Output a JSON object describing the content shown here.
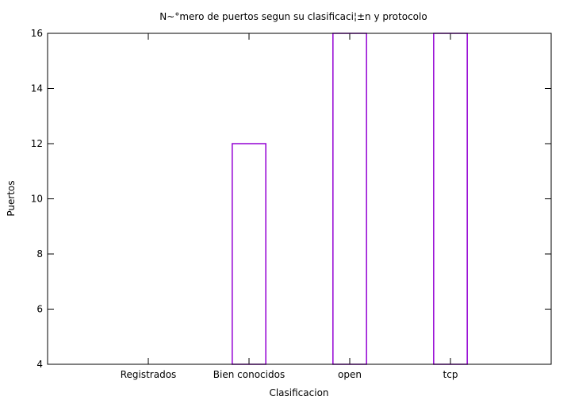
{
  "chart_data": {
    "type": "bar",
    "title": "N~°mero de puertos segun su clasificaci¦±n y protocolo",
    "xlabel": "Clasificacion",
    "ylabel": "Puertos",
    "categories": [
      "Registrados",
      "Bien conocidos",
      "open",
      "tcp"
    ],
    "values": [
      4,
      12,
      16,
      16
    ],
    "ylim": [
      4,
      16
    ],
    "yticks": [
      4,
      6,
      8,
      10,
      12,
      14,
      16
    ],
    "grid": false,
    "legend": "none",
    "bar_color": "#9400d3"
  }
}
